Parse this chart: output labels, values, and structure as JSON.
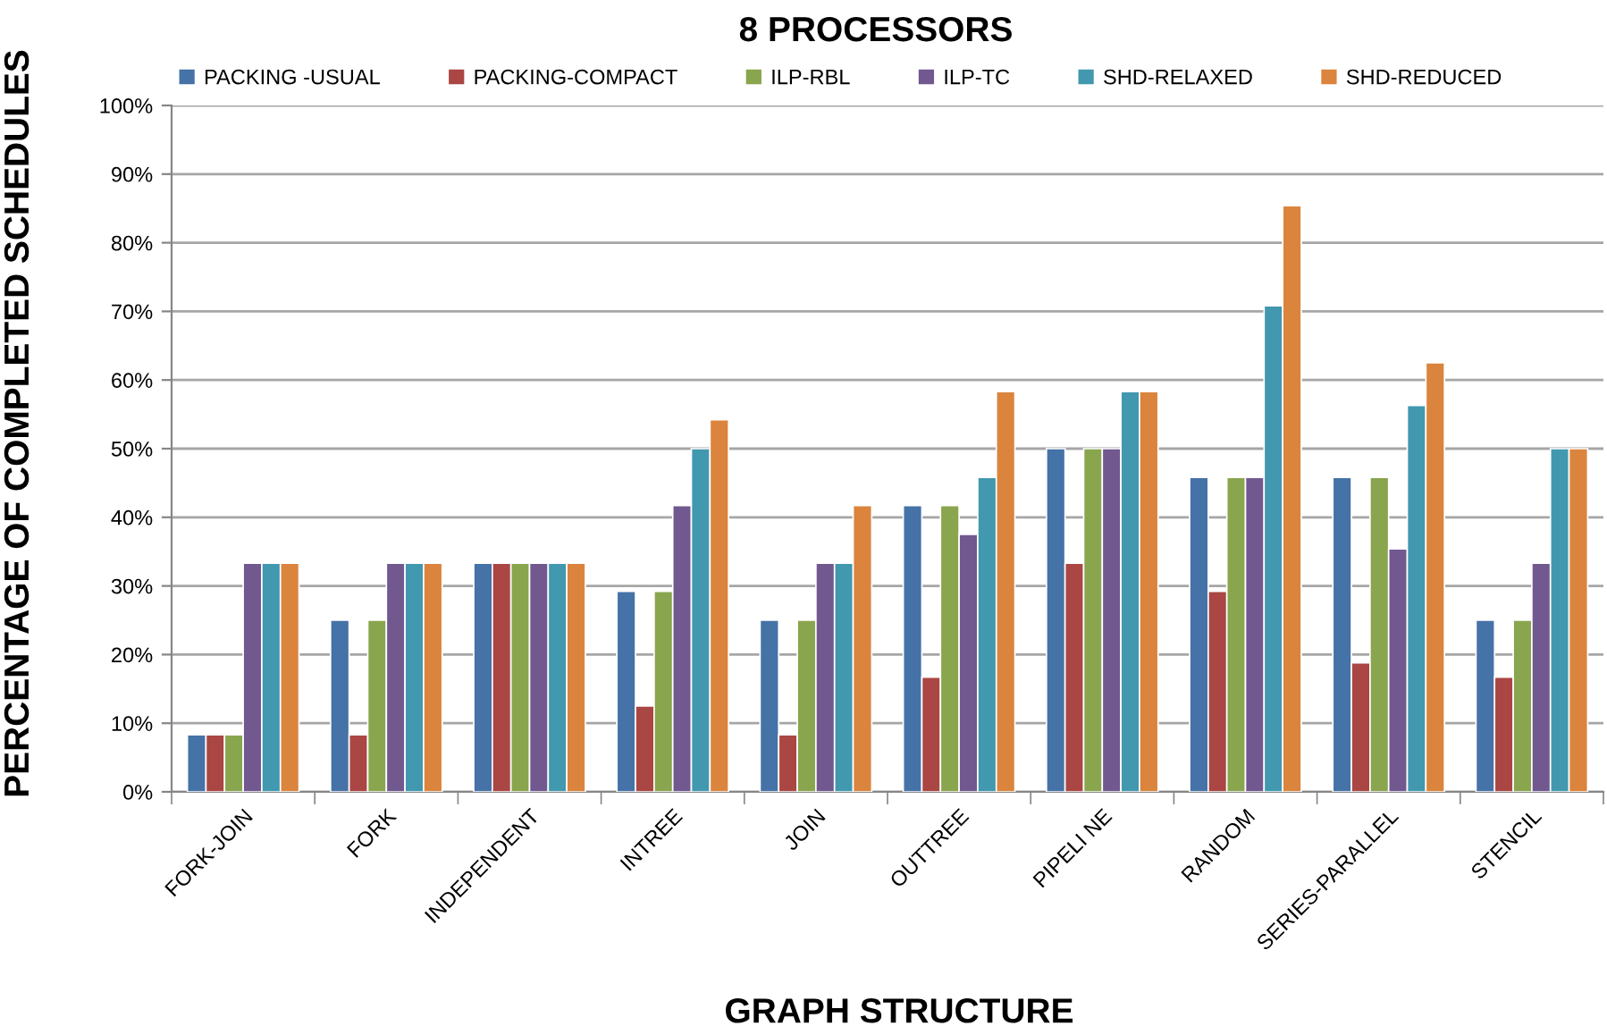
{
  "chart_data": {
    "type": "bar",
    "title": "8 PROCESSORS",
    "xlabel": "GRAPH STRUCTURE",
    "ylabel": "PERCENTAGE OF COMPLETED SCHEDULES",
    "categories": [
      "FORK-JOIN",
      "FORK",
      "INDEPENDENT",
      "INTREE",
      "JOIN",
      "OUTTREE",
      "PIPELI NE",
      "RANDOM",
      "SERIES-PARALLEL",
      "STENCIL"
    ],
    "series": [
      {
        "name": "PACKING -USUAL",
        "color": "#4572a7",
        "values": [
          8.3,
          25,
          33.3,
          29.2,
          25,
          41.7,
          50,
          45.8,
          45.8,
          25
        ]
      },
      {
        "name": "PACKING-COMPACT",
        "color": "#aa4643",
        "values": [
          8.3,
          8.3,
          33.3,
          12.5,
          8.3,
          16.7,
          33.3,
          29.2,
          18.8,
          16.7
        ]
      },
      {
        "name": "ILP-RBL",
        "color": "#89a54e",
        "values": [
          8.3,
          25,
          33.3,
          29.2,
          25,
          41.7,
          50,
          45.8,
          45.8,
          25
        ]
      },
      {
        "name": "ILP-TC",
        "color": "#71588f",
        "values": [
          33.3,
          33.3,
          33.3,
          41.7,
          33.3,
          37.5,
          50,
          45.8,
          35.4,
          33.3
        ]
      },
      {
        "name": "SHD-RELAXED",
        "color": "#4198af",
        "values": [
          33.3,
          33.3,
          33.3,
          50,
          33.3,
          45.8,
          58.3,
          70.8,
          56.3,
          50
        ]
      },
      {
        "name": "SHD-REDUCED",
        "color": "#db843d",
        "values": [
          33.3,
          33.3,
          33.3,
          54.2,
          41.7,
          58.3,
          58.3,
          85.4,
          62.5,
          50
        ]
      }
    ],
    "ylim": [
      0,
      100
    ],
    "yticks": [
      {
        "value": 0,
        "label": "0%"
      },
      {
        "value": 10,
        "label": "10%"
      },
      {
        "value": 20,
        "label": "20%"
      },
      {
        "value": 30,
        "label": "30%"
      },
      {
        "value": 40,
        "label": "40%"
      },
      {
        "value": 50,
        "label": "50%"
      },
      {
        "value": 60,
        "label": "60%"
      },
      {
        "value": 70,
        "label": "70%"
      },
      {
        "value": 80,
        "label": "80%"
      },
      {
        "value": 90,
        "label": "90%"
      },
      {
        "value": 100,
        "label": "100%"
      }
    ],
    "grid": "y",
    "legend": "top"
  }
}
